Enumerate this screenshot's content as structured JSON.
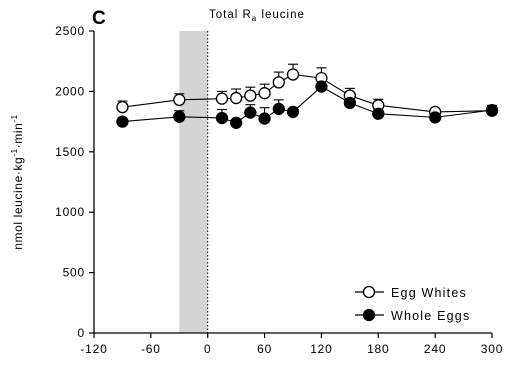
{
  "chart_data": {
    "type": "line",
    "panel_label": "C",
    "title_main": "Total R",
    "title_sub": "a",
    "title_rest": " leucine",
    "ylabel_main": "nmol leucine·kg",
    "ylabel_sup1": "-1",
    "ylabel_mid": "·min",
    "ylabel_sup2": "-1",
    "xlabel": "",
    "xlim": [
      -120,
      300
    ],
    "ylim": [
      0,
      2500
    ],
    "x_ticks": [
      "-120",
      "-60",
      "0",
      "60",
      "120",
      "180",
      "240",
      "300"
    ],
    "y_ticks": [
      "0",
      "500",
      "1000",
      "1500",
      "2000",
      "2500"
    ],
    "shaded_region": [
      -30,
      0
    ],
    "dashed_vline": 0,
    "grid": false,
    "legend_position": "bottom-right",
    "series": [
      {
        "name": "Egg Whites",
        "marker": "open-circle",
        "x": [
          -90,
          -30,
          15,
          30,
          45,
          60,
          75,
          90,
          120,
          150,
          180,
          240,
          300
        ],
        "y": [
          1870,
          1930,
          1940,
          1945,
          1965,
          1985,
          2075,
          2140,
          2110,
          1965,
          1885,
          1830,
          1840
        ],
        "err": [
          50,
          50,
          60,
          75,
          70,
          75,
          85,
          85,
          85,
          60,
          50,
          25,
          40
        ]
      },
      {
        "name": "Whole Eggs",
        "marker": "filled-circle",
        "x": [
          -90,
          -30,
          15,
          30,
          45,
          60,
          75,
          90,
          120,
          150,
          180,
          240,
          300
        ],
        "y": [
          1750,
          1790,
          1780,
          1740,
          1825,
          1775,
          1855,
          1830,
          2040,
          1905,
          1815,
          1785,
          1845
        ],
        "err": [
          0,
          50,
          70,
          0,
          65,
          90,
          75,
          0,
          0,
          45,
          30,
          0,
          40
        ]
      }
    ]
  }
}
